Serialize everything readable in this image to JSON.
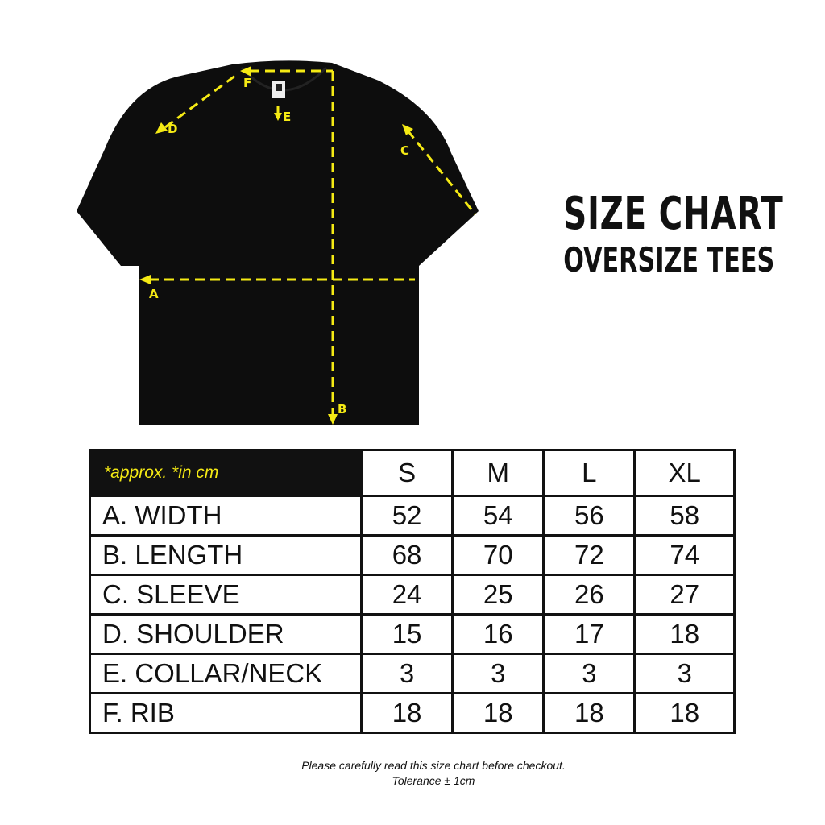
{
  "title": "SIZE CHART",
  "subtitle": "OVERSIZE TEES",
  "accent_color": "#f5ea14",
  "shirt_color": "#0d0d0d",
  "markers": [
    "A",
    "B",
    "C",
    "D",
    "E",
    "F"
  ],
  "table": {
    "note": "*approx. *in cm",
    "sizes": [
      "S",
      "M",
      "L",
      "XL"
    ],
    "rows": [
      {
        "label": "A. WIDTH",
        "values": [
          "52",
          "54",
          "56",
          "58"
        ]
      },
      {
        "label": "B. LENGTH",
        "values": [
          "68",
          "70",
          "72",
          "74"
        ]
      },
      {
        "label": "C. SLEEVE",
        "values": [
          "24",
          "25",
          "26",
          "27"
        ]
      },
      {
        "label": "D. SHOULDER",
        "values": [
          "15",
          "16",
          "17",
          "18"
        ]
      },
      {
        "label": "E. COLLAR/NECK",
        "values": [
          "3",
          "3",
          "3",
          "3"
        ]
      },
      {
        "label": "F. RIB",
        "values": [
          "18",
          "18",
          "18",
          "18"
        ]
      }
    ]
  },
  "footer": {
    "line1": "Please carefully read this size chart before checkout.",
    "line2": "Tolerance ± 1cm"
  }
}
